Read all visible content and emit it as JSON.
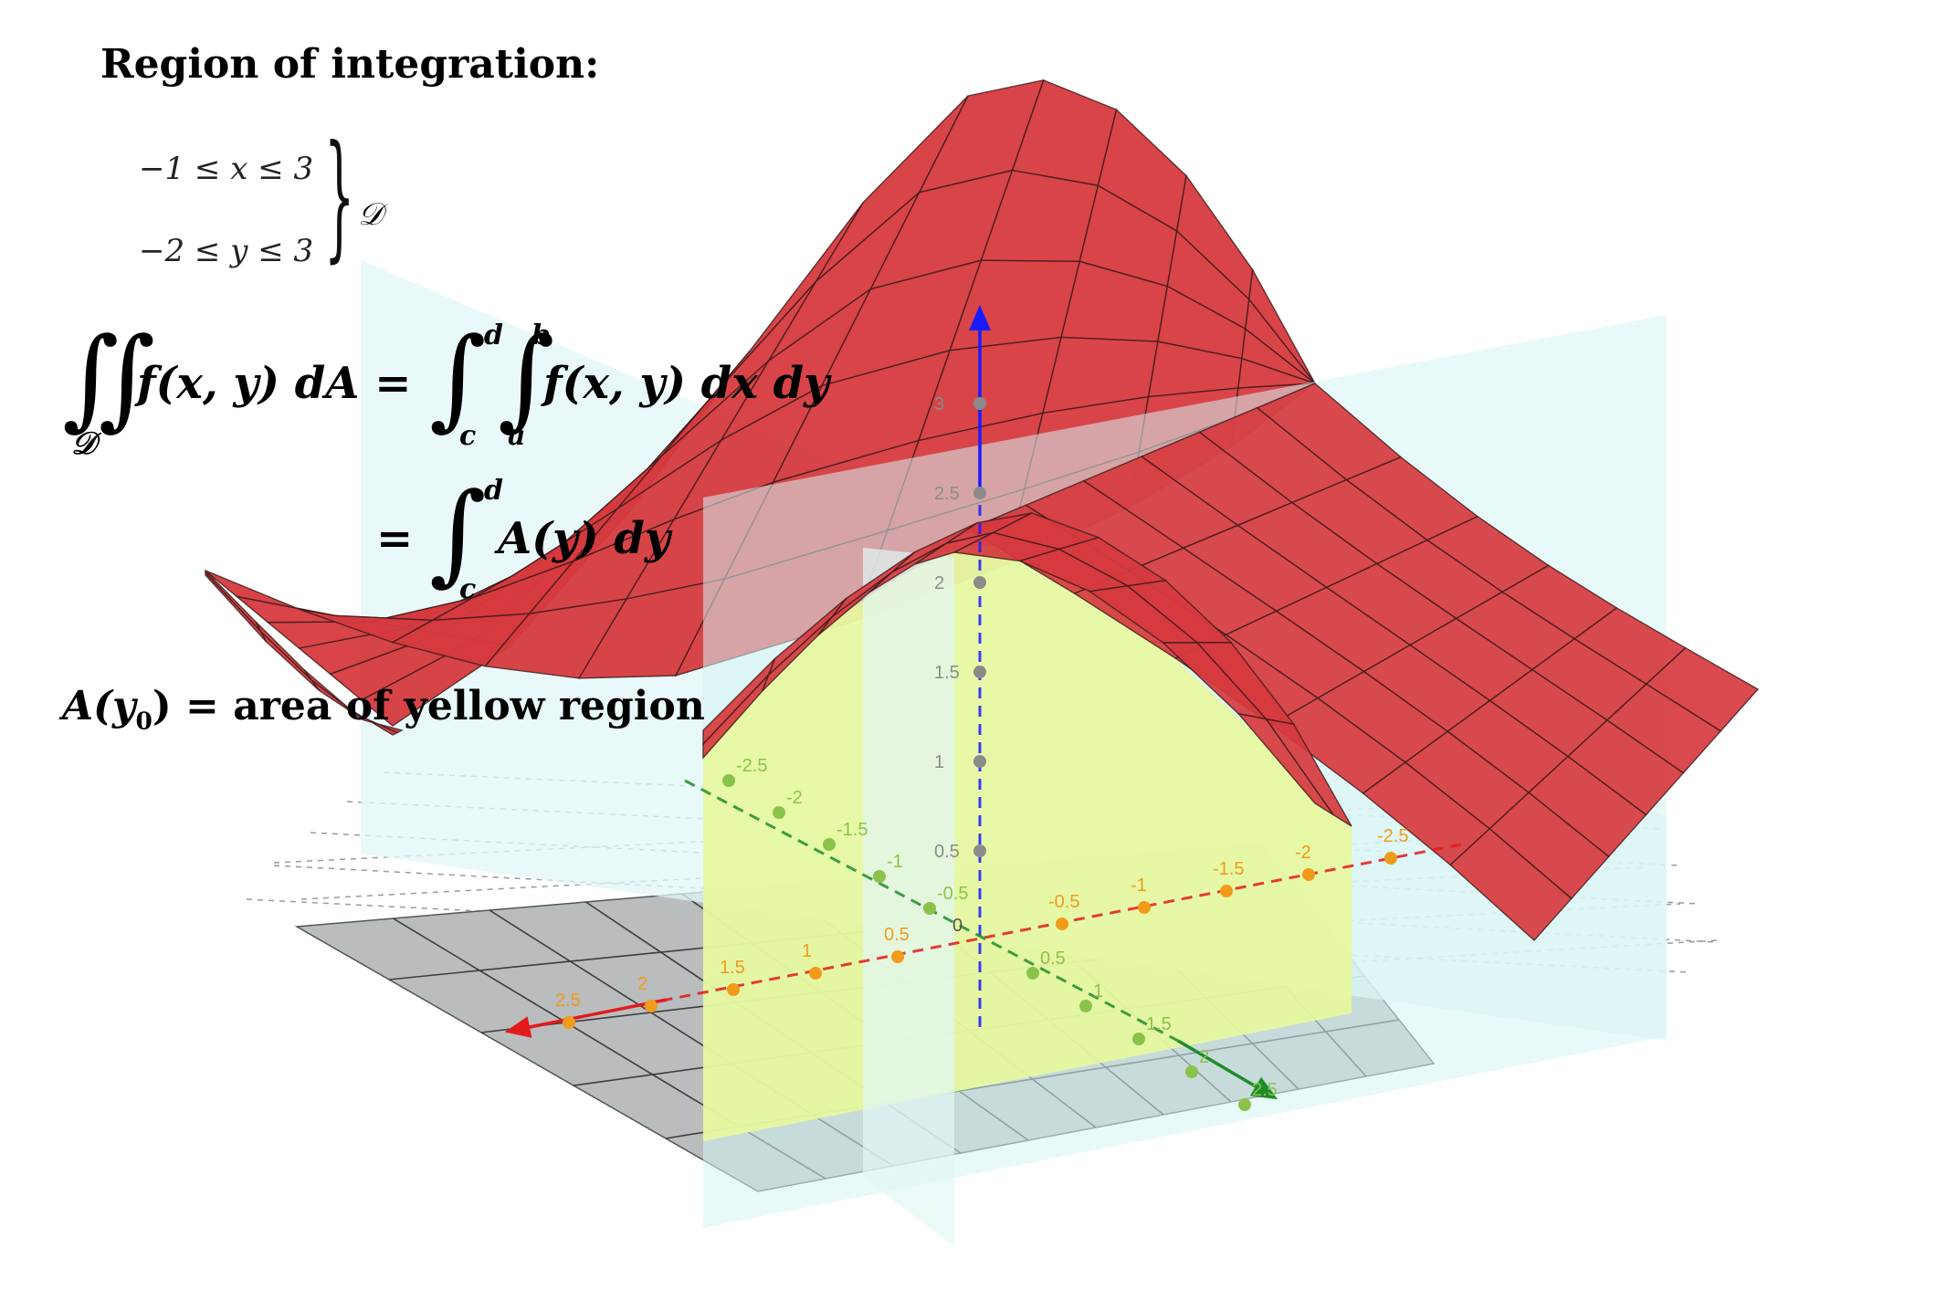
{
  "heading": "Region of integration:",
  "region": {
    "x_inequality": "−1 ≤ x ≤  3",
    "y_inequality": "−2 ≤ y ≤  3",
    "domain_label": "𝒟"
  },
  "formula": {
    "lhs": "f(x, y) dA =",
    "lhs_domain": "𝒟",
    "rhs1": "f(x, y) dx dy",
    "rhs2_prefix": "=",
    "rhs2": "A(y) dy",
    "lim_outer_upper": "d",
    "lim_outer_lower": "c",
    "lim_inner_upper": "b",
    "lim_inner_lower": "a",
    "lim2_upper": "d",
    "lim2_lower": "c"
  },
  "caption": {
    "lhs": "A(y",
    "sub": "0",
    "rhs": ") = area of yellow region"
  },
  "axes": {
    "x_ticks": [
      "0.5",
      "1",
      "1.5",
      "2",
      "2.5"
    ],
    "x_neg_ticks": [
      "-0.5",
      "-1",
      "-1.5",
      "-2",
      "-2.5"
    ],
    "y_ticks": [
      "0.5",
      "1",
      "1.5",
      "2",
      "2.5"
    ],
    "y_neg_ticks": [
      "-0.5",
      "-1",
      "-1.5",
      "-2",
      "-2.5"
    ],
    "z_ticks": [
      "0.5",
      "1",
      "1.5",
      "2",
      "2.5",
      "3"
    ],
    "origin": "0"
  },
  "colors": {
    "surface": "#d63a3e",
    "surface_mesh": "#3a1a1a",
    "yellow_slice": "#ffff33",
    "plane": "#e2f7f7",
    "base_grid": "#b9bdbd",
    "x_axis": "#e31a1c",
    "y_axis": "#1f8c2a",
    "z_axis": "#1a1aff"
  }
}
